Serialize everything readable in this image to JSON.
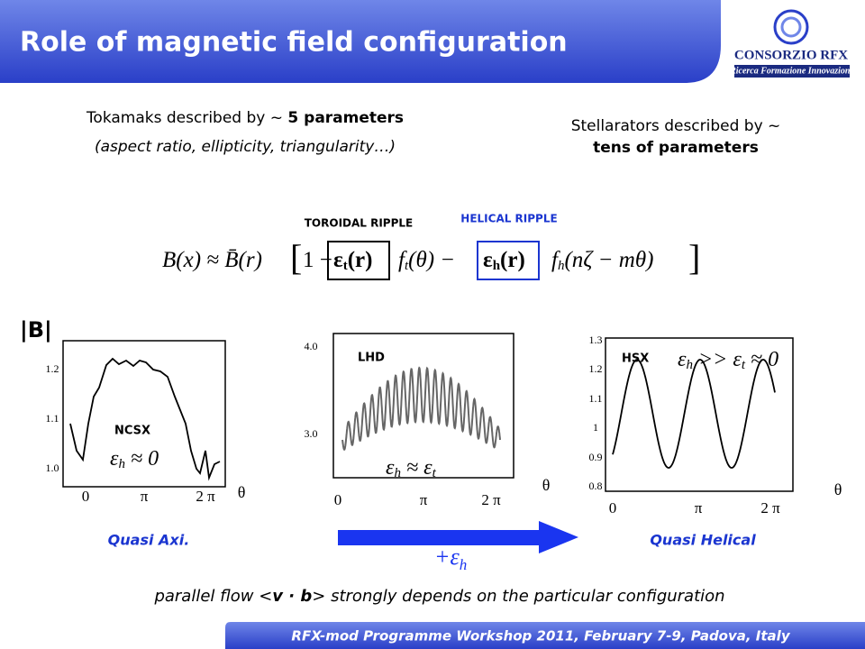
{
  "header": {
    "title": "Role of magnetic field configuration",
    "logo_name": "CONSORZIO RFX",
    "logo_tagline": "Ricerca Formazione Innovazione"
  },
  "left_text": {
    "line1_prefix": "Tokamaks described by ~ ",
    "line1_bold": "5 parameters",
    "line2": "(aspect ratio, ellipticity, triangularity…)"
  },
  "right_text": {
    "line1": "Stellarators described by ~",
    "line2": "tens of parameters"
  },
  "equation": {
    "toroidal_label": "TOROIDAL RIPPLE",
    "helical_label": "HELICAL RIPPLE",
    "lhs": "B(x) ≈ B̄(r)",
    "bracket_open": "[",
    "term1": "1 −",
    "eps_t": "ε",
    "sub_t": "t",
    "eps_t_arg": "(r)",
    "f_t": "f",
    "f_t_sub": "t",
    "f_t_arg": "(θ) −",
    "eps_h": "ε",
    "sub_h": "h",
    "eps_h_arg": "(r)",
    "f_h": "f",
    "f_h_sub": "h",
    "f_h_arg": "(nζ − mθ)",
    "bracket_close": "]"
  },
  "b_label": "|B|",
  "plots": [
    {
      "label": "NCSX",
      "yticks": [
        "1.2",
        "1.1",
        "1.0"
      ],
      "xticks": [
        "0",
        "π",
        "2 π"
      ],
      "x_axis": "θ",
      "relation": [
        "ε",
        "h",
        " ≈ 0"
      ],
      "caption": "Quasi Axi."
    },
    {
      "label": "LHD",
      "yticks": [
        "4.0",
        "3.0"
      ],
      "xticks": [
        "0",
        "π",
        "2 π"
      ],
      "x_axis": "θ",
      "relation": [
        "ε",
        "h",
        " ≈ ε",
        "t"
      ]
    },
    {
      "label": "HSX",
      "yticks": [
        "1.3",
        "1.2",
        "1.1",
        "1",
        "0.9",
        "0.8"
      ],
      "xticks": [
        "0",
        "π",
        "2 π"
      ],
      "x_axis": "θ",
      "relation": [
        "ε",
        "h",
        " >> ε",
        "t",
        " ≈ 0"
      ],
      "caption": "Quasi Helical"
    }
  ],
  "arrow_label": [
    "+ε",
    "h"
  ],
  "bottom_note": [
    "parallel flow <",
    "v · b",
    "> strongly depends on the particular configuration"
  ],
  "footer": "RFX-mod Programme Workshop 2011, February 7-9, Padova, Italy"
}
